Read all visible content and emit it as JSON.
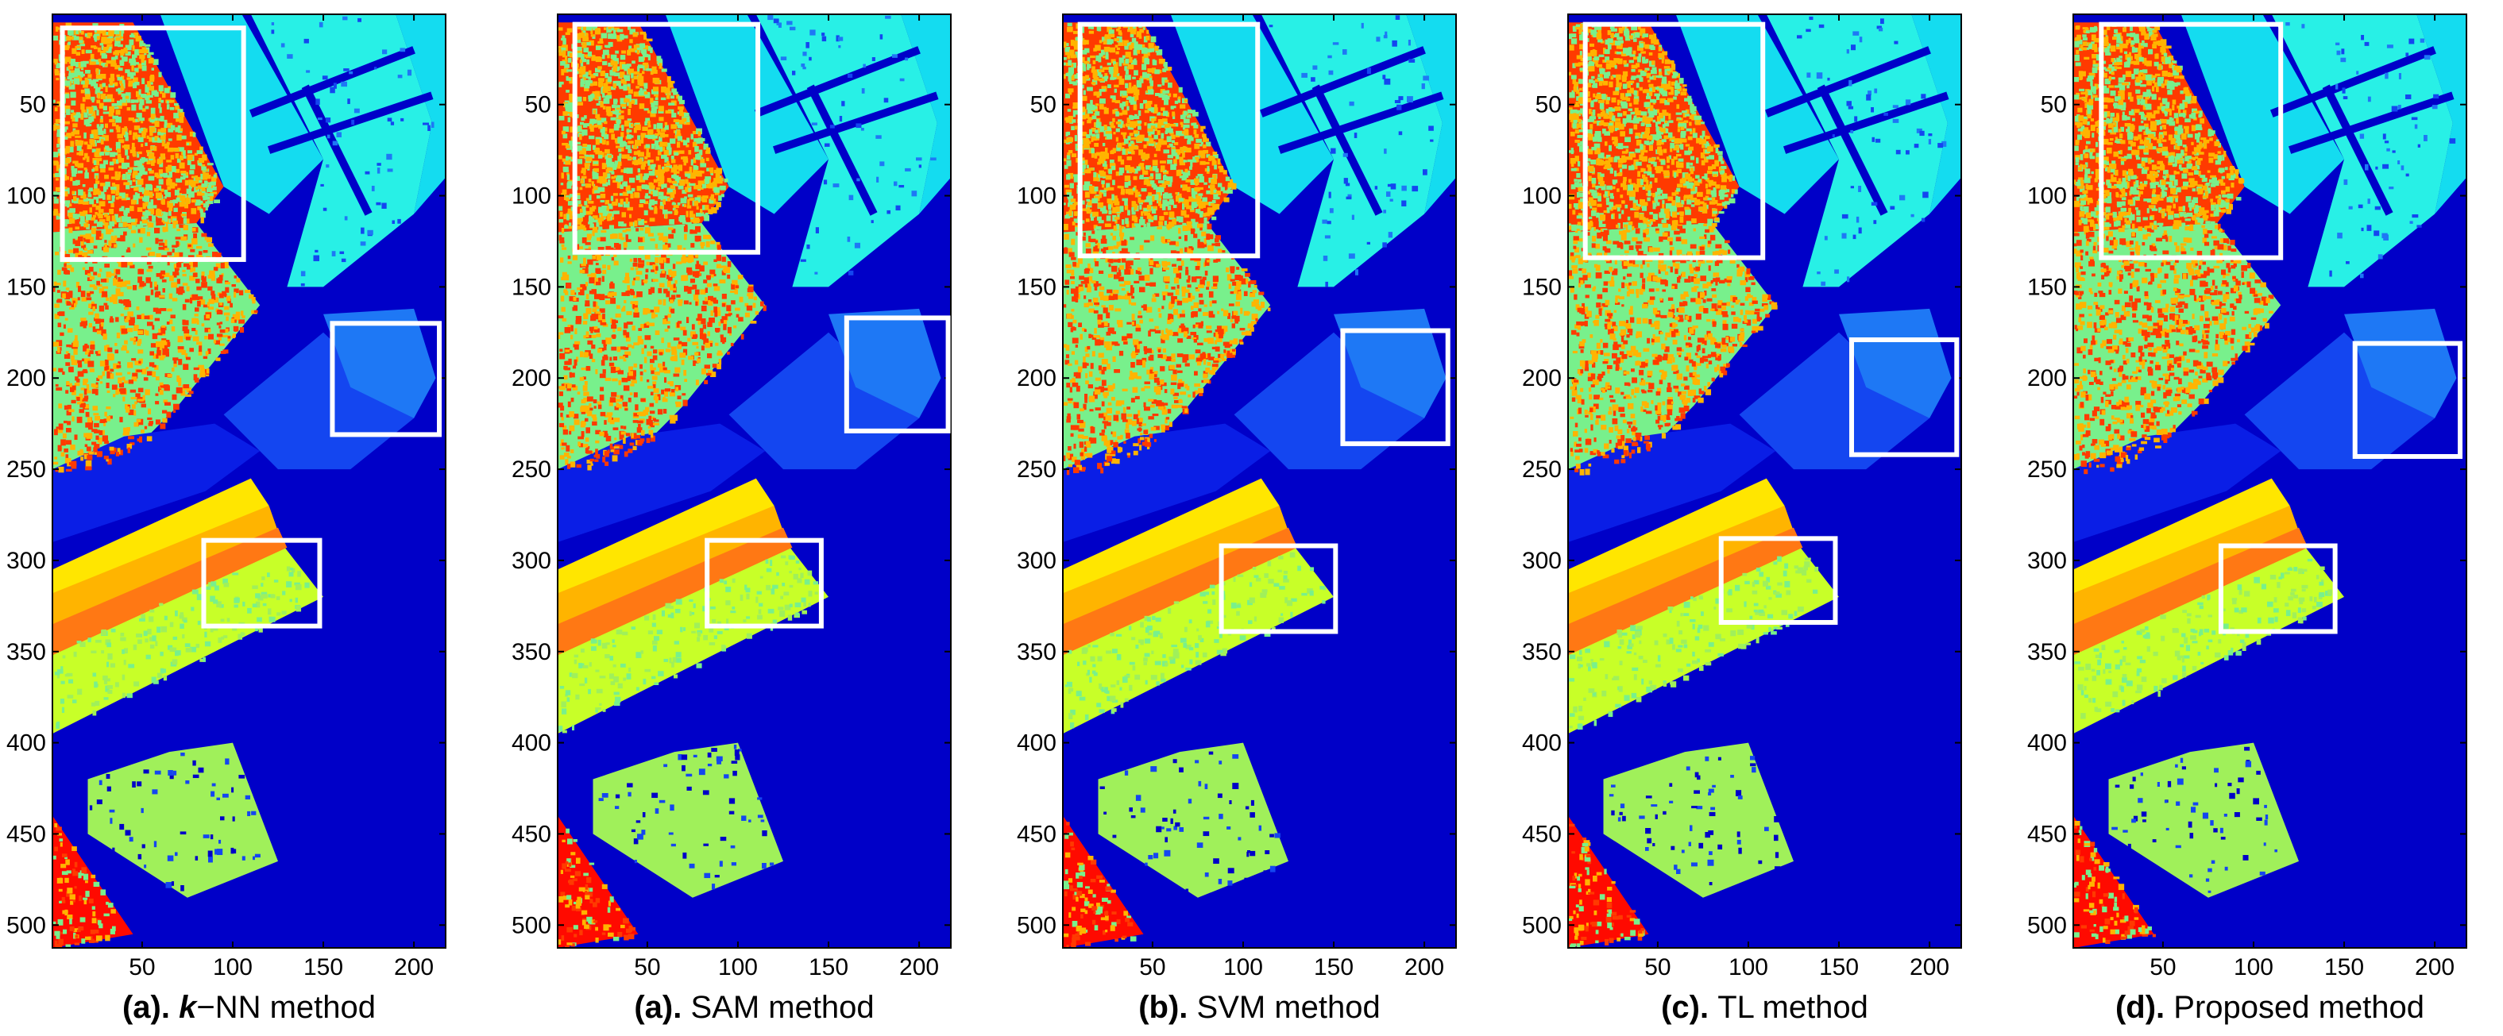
{
  "figure": {
    "panels": [
      {
        "id": "a1",
        "label_prefix": "(a).",
        "label_emph": "k",
        "label_rest": "−NN method"
      },
      {
        "id": "a2",
        "label_prefix": "(a).",
        "label_emph": "",
        "label_rest": " SAM method"
      },
      {
        "id": "b",
        "label_prefix": "(b).",
        "label_emph": "",
        "label_rest": " SVM method"
      },
      {
        "id": "c",
        "label_prefix": "(c).",
        "label_emph": "",
        "label_rest": " TL method"
      },
      {
        "id": "d",
        "label_prefix": "(d).",
        "label_emph": "",
        "label_rest": " Proposed method"
      }
    ]
  },
  "chart_data": {
    "type": "heatmap",
    "description_kind": "classification maps",
    "x_ticks": [
      50,
      100,
      150,
      200
    ],
    "y_ticks": [
      50,
      100,
      150,
      200,
      250,
      300,
      350,
      400,
      450,
      500
    ],
    "xlim": [
      0.5,
      217.5
    ],
    "ylim": [
      512.5,
      0.5
    ],
    "colors": {
      "background": "#0000c8",
      "class_orange_red": "#ff3a00",
      "class_light_green": "#78f08c",
      "class_cyan": "#14dcf0",
      "class_light_cyan": "#28f0e6",
      "class_sky_blue": "#1e78f5",
      "class_medium_blue": "#1446f0",
      "class_blue": "#0a1ee6",
      "class_yellow": "#ffe600",
      "class_gold": "#ffb400",
      "class_orange": "#ff7814",
      "class_yellow_green": "#c8ff28",
      "class_pale_green": "#a0f05a",
      "class_red": "#ff0a00",
      "highlight_box": "#ffffff"
    },
    "highlight_boxes": [
      [
        [
          6,
          8,
          106,
          135
        ],
        [
          155,
          170,
          214,
          231
        ],
        [
          84,
          289,
          148,
          336
        ]
      ],
      [
        [
          10,
          6,
          111,
          131
        ],
        [
          160,
          167,
          216,
          229
        ],
        [
          83,
          289,
          146,
          336
        ]
      ],
      [
        [
          10,
          6,
          108,
          133
        ],
        [
          155,
          174,
          213,
          236
        ],
        [
          88,
          292,
          151,
          339
        ]
      ],
      [
        [
          10,
          6,
          108,
          134
        ],
        [
          157,
          179,
          215,
          242
        ],
        [
          85,
          288,
          148,
          334
        ]
      ],
      [
        [
          16,
          6,
          115,
          134
        ],
        [
          156,
          181,
          214,
          243
        ],
        [
          82,
          292,
          145,
          339
        ]
      ]
    ]
  }
}
